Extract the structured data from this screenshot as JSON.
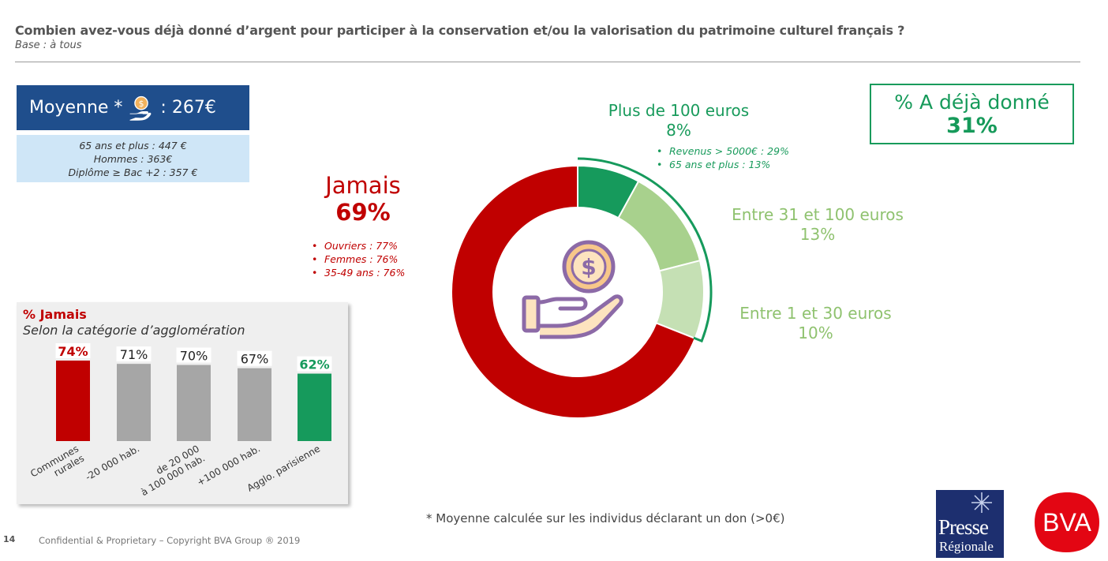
{
  "header": {
    "question": "Combien avez-vous déjà donné d’argent pour participer à la conservation et/ou la valorisation du patrimoine culturel français ?",
    "base": "Base : à tous"
  },
  "average": {
    "label": "Moyenne *",
    "value": ": 267€",
    "details": [
      "65 ans et plus : 447 €",
      "Hommes : 363€",
      "Diplôme ≥ Bac +2 : 357 €"
    ]
  },
  "ever_given": {
    "label": "% A déjà donné",
    "value": "31%"
  },
  "segments": {
    "jamais": {
      "label": "Jamais",
      "value": "69%",
      "bullets": [
        "Ouvriers : 77%",
        "Femmes : 76%",
        "35-49 ans : 76%"
      ]
    },
    "plus100": {
      "label": "Plus de 100 euros",
      "value": "8%",
      "bullets": [
        "Revenus > 5000€ : 29%",
        "65 ans et plus : 13%"
      ]
    },
    "e31_100": {
      "label": "Entre 31 et 100 euros",
      "value": "13%"
    },
    "e1_30": {
      "label": "Entre 1 et 30 euros",
      "value": "10%"
    }
  },
  "bullet_char": "•",
  "agglomeration": {
    "title": "% Jamais",
    "subtitle": "Selon la catégorie d’agglomération"
  },
  "chart_data": [
    {
      "type": "pie",
      "variant": "donut",
      "categories": [
        "Plus de 100 euros",
        "Entre 31 et 100 euros",
        "Entre 1 et 30 euros",
        "Jamais"
      ],
      "values": [
        8,
        13,
        10,
        69
      ],
      "colors": [
        "#169a5c",
        "#a8d18d",
        "#c5e0b4",
        "#c00000"
      ],
      "center_icon": "hand-coin-icon"
    },
    {
      "type": "bar",
      "title": "% Jamais",
      "subtitle": "Selon la catégorie d’agglomération",
      "categories": [
        [
          "Communes",
          "rurales"
        ],
        [
          "-20 000 hab."
        ],
        [
          "de 20 000",
          "à 100 000 hab."
        ],
        [
          "+100 000 hab."
        ],
        [
          "Agglo. parisienne"
        ]
      ],
      "values": [
        74,
        71,
        70,
        67,
        62
      ],
      "labels": [
        "74%",
        "71%",
        "70%",
        "67%",
        "62%"
      ],
      "colors": [
        "#c00000",
        "#a6a6a6",
        "#a6a6a6",
        "#a6a6a6",
        "#169a5c"
      ],
      "label_colors": [
        "#c00000",
        "#222222",
        "#222222",
        "#222222",
        "#169a5c"
      ]
    }
  ],
  "footnote": "* Moyenne calculée sur les individus déclarant un don (>0€)",
  "footer": {
    "page_number": "14",
    "confidential": "Confidential & Proprietary – Copyright BVA Group ®  2019"
  },
  "logos": {
    "presse_line1": "Presse",
    "presse_line2": "Régionale",
    "bva": "BVA"
  }
}
